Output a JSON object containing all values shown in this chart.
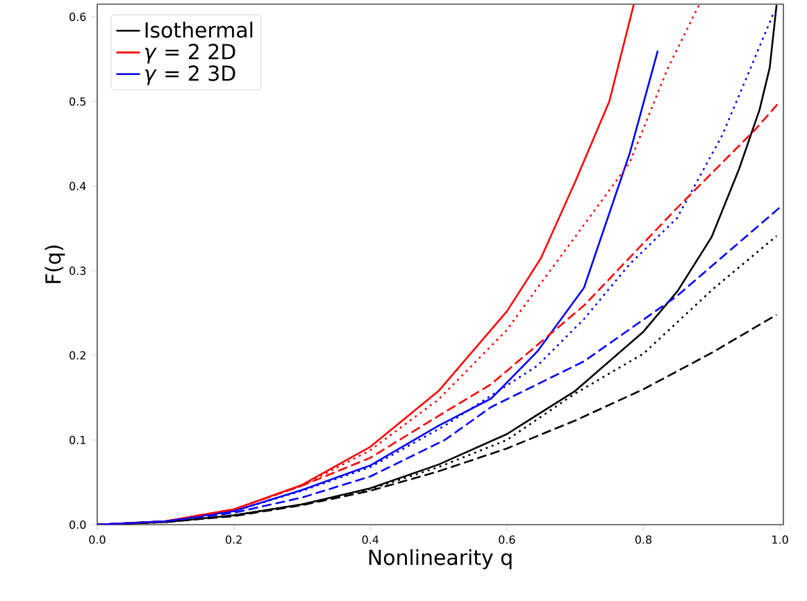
{
  "chart_data": {
    "type": "line",
    "xlabel": "Nonlinearity q",
    "ylabel": "F(q)",
    "xlim": [
      0,
      1.005
    ],
    "ylim": [
      0,
      0.615
    ],
    "xticks": [
      {
        "value": 0,
        "label": "0.0"
      },
      0.2,
      0.4,
      0.6,
      0.8,
      {
        "value": 1,
        "label": "1.0"
      }
    ],
    "yticks": [
      {
        "value": 0,
        "label": "0.0"
      },
      0.1,
      0.2,
      0.3,
      0.4,
      0.5,
      0.6
    ],
    "grid": false,
    "legend": "top left",
    "series": [
      {
        "name": "Isothermal",
        "color": "#000000",
        "line_style": "solid",
        "x": [
          0,
          0.1,
          0.2,
          0.3,
          0.4,
          0.5,
          0.6,
          0.7,
          0.8,
          0.85,
          0.9,
          0.94,
          0.97,
          0.985,
          0.995
        ],
        "values": [
          0,
          0.003,
          0.011,
          0.024,
          0.043,
          0.071,
          0.107,
          0.158,
          0.228,
          0.276,
          0.34,
          0.42,
          0.49,
          0.54,
          0.614
        ]
      },
      {
        "name": "*γ* = 2 2D",
        "color": "#ff0000",
        "line_style": "solid",
        "x": [
          0,
          0.1,
          0.2,
          0.3,
          0.4,
          0.5,
          0.6,
          0.65,
          0.7,
          0.75,
          0.786
        ],
        "values": [
          0,
          0.004,
          0.018,
          0.047,
          0.092,
          0.158,
          0.252,
          0.315,
          0.405,
          0.5,
          0.615
        ]
      },
      {
        "name": "*γ* = 2 3D",
        "color": "#0000ff",
        "line_style": "solid",
        "x": [
          0,
          0.1,
          0.2,
          0.3,
          0.4,
          0.5,
          0.577,
          0.645,
          0.713,
          0.78,
          0.821
        ],
        "values": [
          0,
          0.004,
          0.016,
          0.041,
          0.07,
          0.117,
          0.149,
          0.205,
          0.28,
          0.439,
          0.56
        ]
      },
      {
        "color": "#000000",
        "line_style": "dotted",
        "x": [
          0,
          0.1,
          0.2,
          0.3,
          0.4,
          0.5,
          0.6,
          0.7,
          0.8,
          0.9,
          0.995
        ],
        "values": [
          0,
          0.003,
          0.011,
          0.024,
          0.042,
          0.068,
          0.1,
          0.155,
          0.202,
          0.277,
          0.341
        ]
      },
      {
        "color": "#ff0000",
        "line_style": "dotted",
        "x": [
          0,
          0.1,
          0.2,
          0.3,
          0.4,
          0.5,
          0.6,
          0.645,
          0.7,
          0.78,
          0.835,
          0.882
        ],
        "values": [
          0,
          0.004,
          0.018,
          0.046,
          0.088,
          0.148,
          0.23,
          0.28,
          0.34,
          0.428,
          0.538,
          0.615
        ]
      },
      {
        "color": "#0000ff",
        "line_style": "dotted",
        "x": [
          0,
          0.1,
          0.2,
          0.3,
          0.4,
          0.509,
          0.645,
          0.713,
          0.78,
          0.849,
          0.916,
          0.992
        ],
        "values": [
          0,
          0.004,
          0.016,
          0.04,
          0.068,
          0.117,
          0.188,
          0.243,
          0.308,
          0.362,
          0.461,
          0.607
        ]
      },
      {
        "color": "#000000",
        "line_style": "dashed",
        "x": [
          0,
          0.1,
          0.2,
          0.3,
          0.4,
          0.5,
          0.6,
          0.7,
          0.8,
          0.9,
          0.995
        ],
        "values": [
          0,
          0.003,
          0.01,
          0.023,
          0.04,
          0.063,
          0.09,
          0.123,
          0.16,
          0.203,
          0.248
        ]
      },
      {
        "color": "#ff0000",
        "line_style": "dashed",
        "x": [
          0,
          0.1,
          0.2,
          0.3,
          0.4,
          0.509,
          0.577,
          0.713,
          0.849,
          0.964,
          1.0
        ],
        "values": [
          0,
          0.004,
          0.018,
          0.046,
          0.079,
          0.133,
          0.166,
          0.259,
          0.374,
          0.467,
          0.5
        ]
      },
      {
        "color": "#0000ff",
        "line_style": "dashed",
        "x": [
          0,
          0.1,
          0.2,
          0.3,
          0.4,
          0.509,
          0.577,
          0.713,
          0.849,
          1.0
        ],
        "values": [
          0,
          0.004,
          0.014,
          0.032,
          0.057,
          0.1,
          0.139,
          0.193,
          0.27,
          0.375
        ]
      }
    ]
  }
}
